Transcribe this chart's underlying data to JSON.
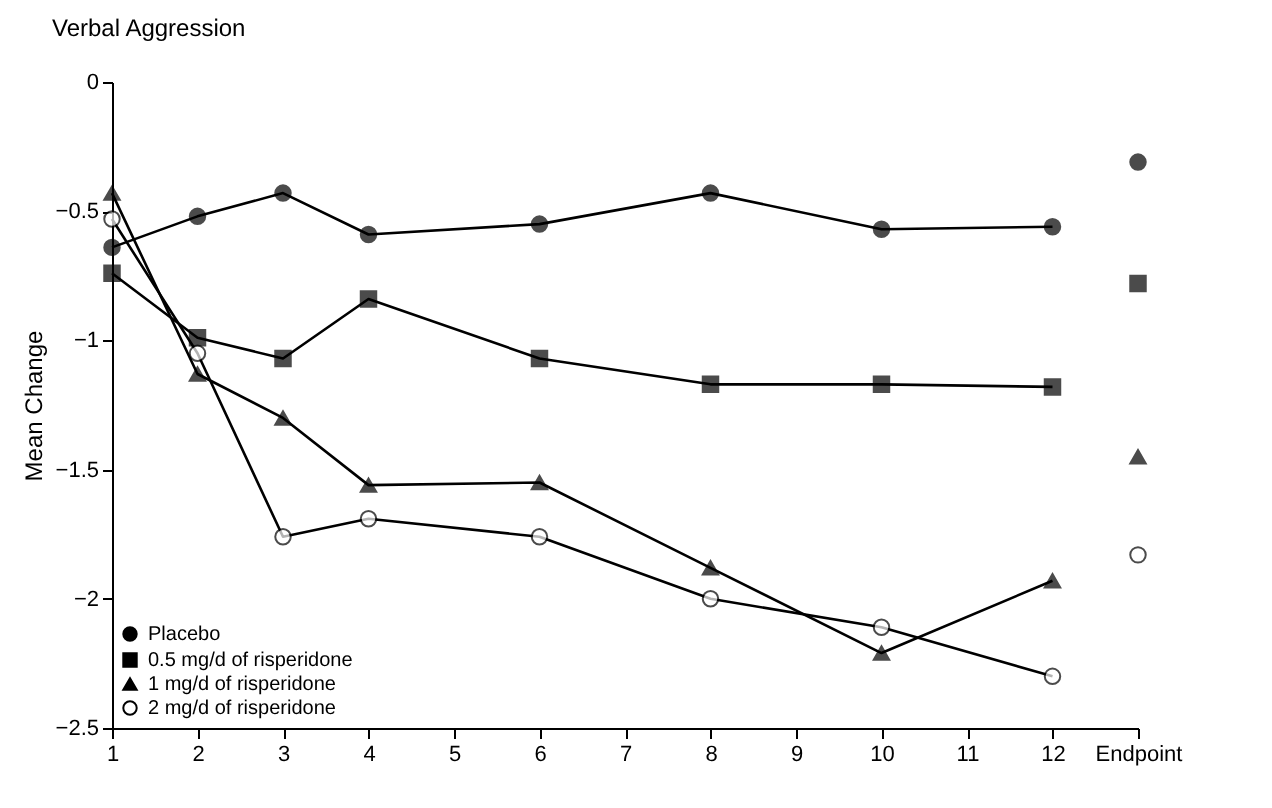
{
  "chart_data": {
    "type": "line",
    "title": "Verbal Aggression",
    "ylabel": "Mean Change",
    "xlim": [
      1,
      13
    ],
    "xticks": [
      1,
      2,
      3,
      4,
      5,
      6,
      7,
      8,
      9,
      10,
      11,
      12,
      {
        "value": 13,
        "label": "Endpoint"
      }
    ],
    "ylim": [
      -2.5,
      0
    ],
    "yticks": [
      0,
      -0.5,
      -1,
      -1.5,
      -2,
      -2.5
    ],
    "grid": false,
    "legend": "bottom left",
    "series": [
      {
        "name": "Placebo",
        "color": "#000000",
        "marker": "circle",
        "x": [
          1,
          2,
          3,
          4,
          6,
          8,
          10,
          12
        ],
        "values": [
          -0.64,
          -0.52,
          -0.43,
          -0.59,
          -0.55,
          -0.43,
          -0.57,
          -0.56
        ]
      },
      {
        "name": "0.5 mg/d of risperidone",
        "color": "#000000",
        "marker": "square",
        "x": [
          1,
          2,
          3,
          4,
          6,
          8,
          10,
          12
        ],
        "values": [
          -0.74,
          -0.99,
          -1.07,
          -0.84,
          -1.07,
          -1.17,
          -1.17,
          -1.18
        ]
      },
      {
        "name": "1 mg/d of risperidone",
        "color": "#000000",
        "marker": "triangle",
        "x": [
          1,
          2,
          3,
          4,
          6,
          8,
          10,
          12
        ],
        "values": [
          -0.43,
          -1.13,
          -1.3,
          -1.56,
          -1.55,
          -1.88,
          -2.21,
          -1.93
        ]
      },
      {
        "name": "2 mg/d of risperidone",
        "color": "#ffffff",
        "marker": "circle",
        "x": [
          1,
          2,
          3,
          4,
          6,
          8,
          10,
          12
        ],
        "values": [
          -0.53,
          -1.05,
          -1.76,
          -1.69,
          -1.76,
          -2.0,
          -2.11,
          -2.3
        ]
      },
      {
        "type": "scatter",
        "color": "#000000",
        "marker": "circle",
        "x": [
          13
        ],
        "values": [
          -0.31
        ]
      },
      {
        "type": "scatter",
        "color": "#000000",
        "marker": "square",
        "x": [
          13
        ],
        "values": [
          -0.78
        ]
      },
      {
        "type": "scatter",
        "color": "#000000",
        "marker": "triangle",
        "x": [
          13
        ],
        "values": [
          -1.45
        ]
      },
      {
        "type": "scatter",
        "color": "#ffffff",
        "marker": "circle",
        "x": [
          13
        ],
        "values": [
          -1.83
        ]
      }
    ]
  }
}
